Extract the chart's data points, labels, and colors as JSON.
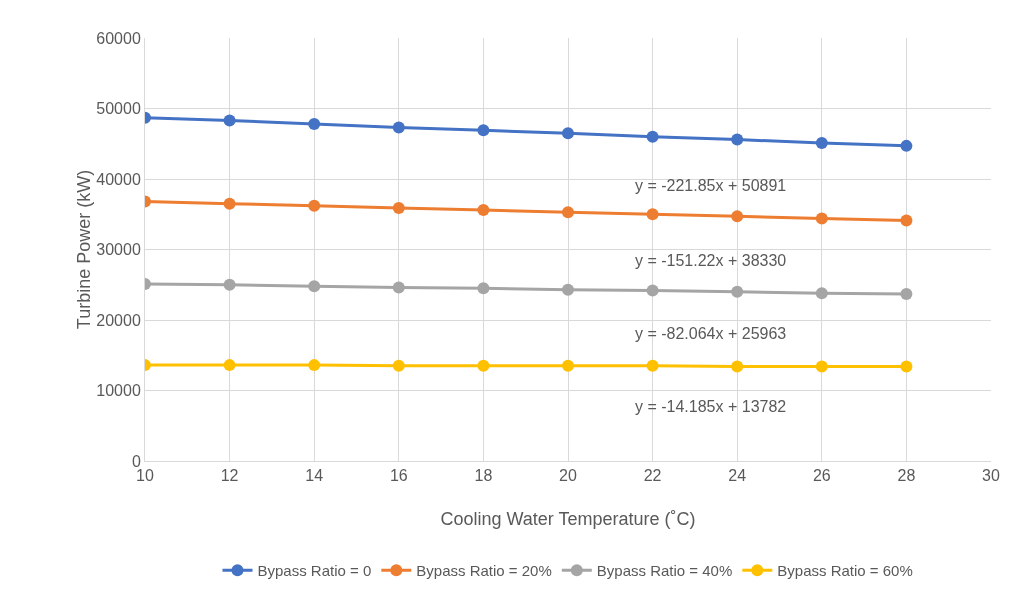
{
  "chart_data": {
    "type": "line",
    "xlabel": "Cooling Water Temperature (˚C)",
    "ylabel": "Turbine Power (kW)",
    "x": [
      10,
      12,
      14,
      16,
      18,
      20,
      22,
      24,
      26,
      28
    ],
    "series": [
      {
        "name": "Bypass Ratio = 0",
        "color": "#4472c4",
        "values": [
          48700,
          48300,
          47800,
          47300,
          46900,
          46500,
          46000,
          45600,
          45100,
          44700
        ]
      },
      {
        "name": "Bypass Ratio = 20%",
        "color": "#ed7d31",
        "values": [
          36800,
          36500,
          36200,
          35900,
          35600,
          35300,
          35000,
          34700,
          34400,
          34100
        ]
      },
      {
        "name": "Bypass Ratio = 40%",
        "color": "#a5a5a5",
        "values": [
          25100,
          25000,
          24800,
          24600,
          24500,
          24300,
          24200,
          24000,
          23800,
          23700
        ]
      },
      {
        "name": "Bypass Ratio = 60%",
        "color": "#ffc000",
        "values": [
          13600,
          13600,
          13600,
          13500,
          13500,
          13500,
          13500,
          13400,
          13400,
          13400
        ]
      }
    ],
    "xlim": [
      10,
      30
    ],
    "xticks": [
      10,
      12,
      14,
      16,
      18,
      20,
      22,
      24,
      26,
      28,
      30
    ],
    "ylim": [
      0,
      60000
    ],
    "yticks": [
      0,
      10000,
      20000,
      30000,
      40000,
      50000,
      60000
    ],
    "annotations": [
      "y = -221.85x + 50891",
      "y = -151.22x + 38330",
      "y = -82.064x + 25963",
      "y = -14.185x + 13782"
    ],
    "grid": true,
    "legend": "bottom",
    "marker": "circle",
    "line_style": "solid"
  }
}
